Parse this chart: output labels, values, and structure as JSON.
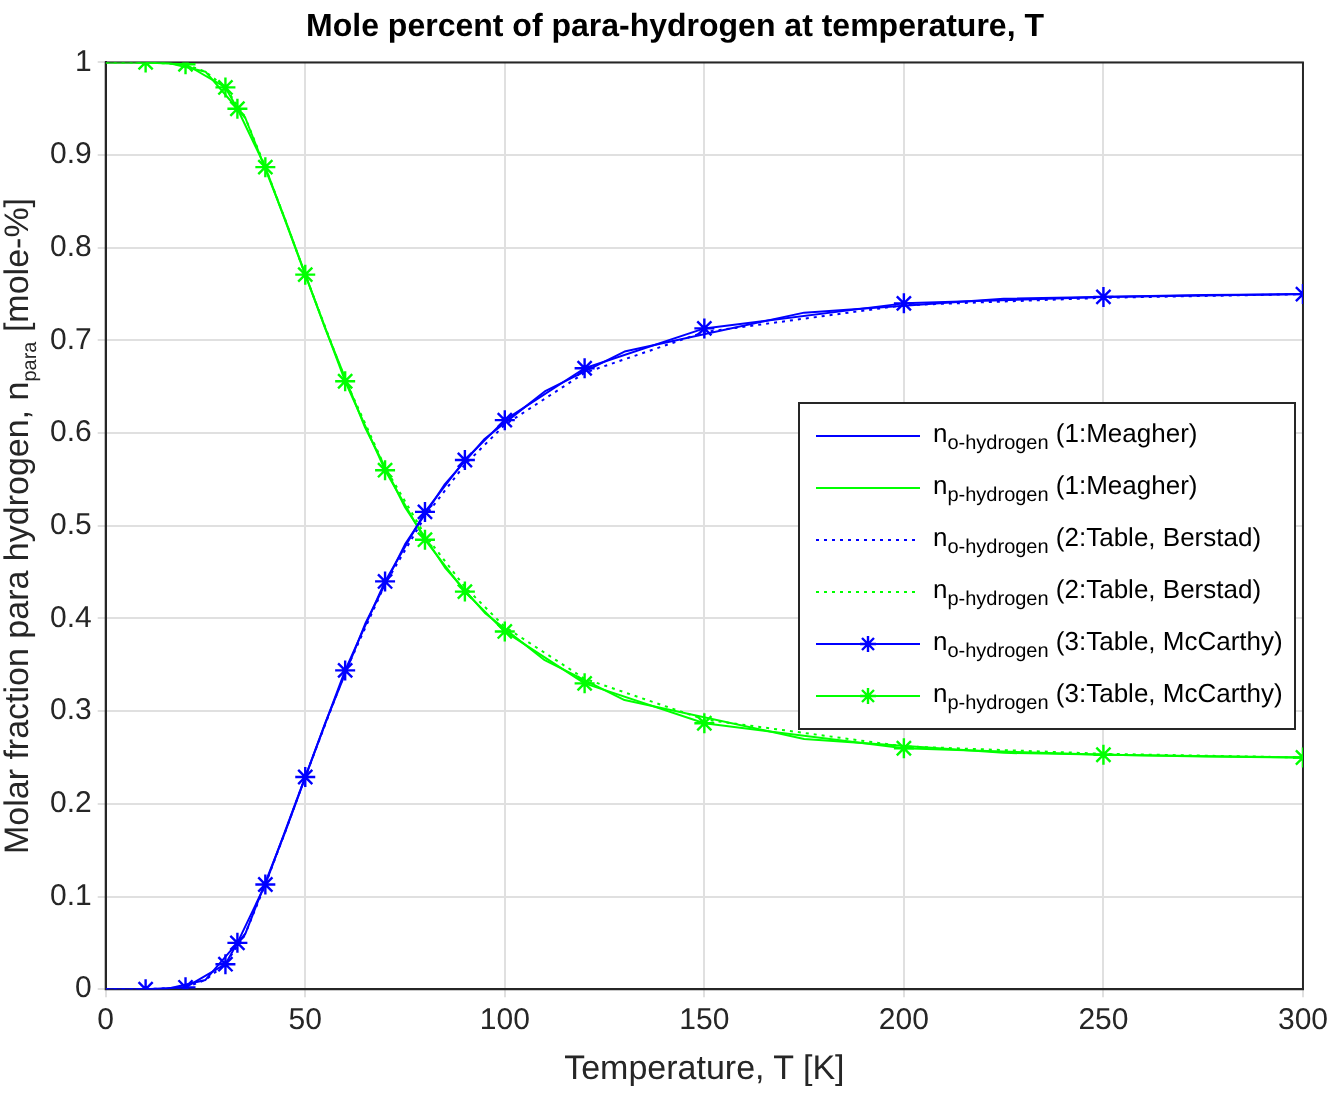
{
  "chart_data": {
    "type": "line",
    "title": "Mole percent of para-hydrogen at temperature, T",
    "xlabel": "Temperature, T [K]",
    "ylabel": "Molar fraction para hydrogen, n$_{para}$  [mole-%]",
    "xlim": [
      0,
      300
    ],
    "xticks": [
      0,
      50,
      100,
      150,
      200,
      250,
      300
    ],
    "ylim": [
      0,
      1
    ],
    "yticks": [
      0,
      0.1,
      0.2,
      0.3,
      0.4,
      0.5,
      0.6,
      0.7,
      0.8,
      0.9,
      1
    ],
    "grid": true,
    "legend": "right",
    "series": [
      {
        "name": "n$_{o-hydrogen}$ (1:Meagher)",
        "color": "#0000ff",
        "line_style": "solid",
        "marker": "none",
        "x": [
          0,
          5,
          15,
          25,
          35,
          45,
          55,
          65,
          75,
          85,
          95,
          110,
          130,
          175,
          225,
          275,
          300
        ],
        "values": [
          0,
          0,
          0,
          0.01,
          0.06,
          0.17,
          0.287,
          0.394,
          0.48,
          0.545,
          0.594,
          0.645,
          0.688,
          0.73,
          0.745,
          0.749,
          0.75
        ]
      },
      {
        "name": "n$_{p-hydrogen}$ (1:Meagher)",
        "color": "#00ff00",
        "line_style": "solid",
        "marker": "none",
        "x": [
          0,
          5,
          15,
          25,
          35,
          45,
          55,
          65,
          75,
          85,
          95,
          110,
          130,
          175,
          225,
          275,
          300
        ],
        "values": [
          1,
          1,
          1,
          0.99,
          0.94,
          0.83,
          0.713,
          0.606,
          0.52,
          0.455,
          0.406,
          0.355,
          0.312,
          0.27,
          0.255,
          0.251,
          0.25
        ]
      },
      {
        "name": "n$_{o-hydrogen}$ (2:Table, Berstad)",
        "color": "#0000ff",
        "line_style": "dotted",
        "marker": "none",
        "x": [
          0,
          10,
          20,
          25,
          30,
          35,
          40,
          45,
          50,
          60,
          70,
          80,
          90,
          100,
          120,
          150,
          200,
          250,
          300
        ],
        "values": [
          0,
          0,
          0.002,
          0.01,
          0.027,
          0.06,
          0.113,
          0.17,
          0.229,
          0.342,
          0.437,
          0.51,
          0.566,
          0.609,
          0.665,
          0.709,
          0.738,
          0.746,
          0.75
        ]
      },
      {
        "name": "n$_{p-hydrogen}$ (2:Table, Berstad)",
        "color": "#00ff00",
        "line_style": "dotted",
        "marker": "none",
        "x": [
          0,
          10,
          20,
          25,
          30,
          35,
          40,
          45,
          50,
          60,
          70,
          80,
          90,
          100,
          120,
          150,
          200,
          250,
          300
        ],
        "values": [
          1,
          1,
          0.998,
          0.99,
          0.973,
          0.94,
          0.887,
          0.83,
          0.771,
          0.658,
          0.563,
          0.49,
          0.434,
          0.391,
          0.335,
          0.291,
          0.262,
          0.254,
          0.25
        ]
      },
      {
        "name": "n$_{o-hydrogen}$ (3:Table, McCarthy)",
        "color": "#0000ff",
        "line_style": "solid",
        "marker": "cross",
        "x": [
          10,
          20,
          30,
          33,
          40,
          50,
          60,
          70,
          80,
          90,
          100,
          120,
          150,
          200,
          250,
          300
        ],
        "values": [
          0,
          0.002,
          0.027,
          0.05,
          0.113,
          0.229,
          0.344,
          0.44,
          0.515,
          0.571,
          0.614,
          0.67,
          0.713,
          0.74,
          0.747,
          0.75
        ]
      },
      {
        "name": "n$_{p-hydrogen}$ (3:Table, McCarthy)",
        "color": "#00ff00",
        "line_style": "solid",
        "marker": "cross",
        "x": [
          10,
          20,
          30,
          33,
          40,
          50,
          60,
          70,
          80,
          90,
          100,
          120,
          150,
          200,
          250,
          300
        ],
        "values": [
          1,
          0.998,
          0.973,
          0.95,
          0.887,
          0.771,
          0.656,
          0.56,
          0.485,
          0.429,
          0.386,
          0.33,
          0.287,
          0.26,
          0.253,
          0.25
        ]
      }
    ]
  }
}
